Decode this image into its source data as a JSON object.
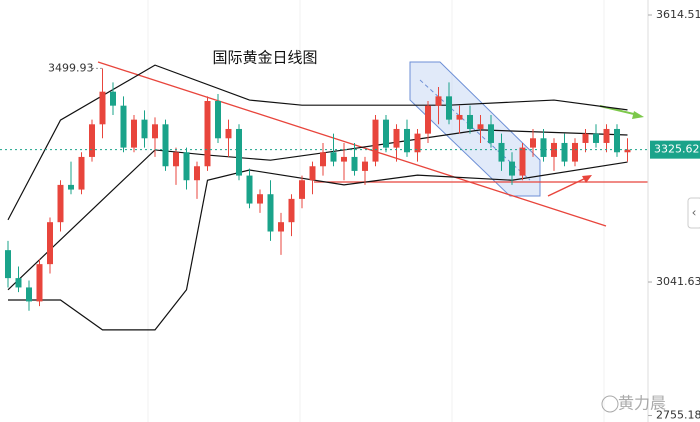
{
  "chart_data": {
    "type": "candlestick",
    "title": "国际黄金日线图",
    "watermark": "黄力晨",
    "ylim": [
      2741.3,
      3646.7
    ],
    "yticks": [
      3614.51,
      3041.63,
      2755.18
    ],
    "last_price": 3325.62,
    "high_annotation": 3499.93,
    "up_color": "#e8453c",
    "down_color": "#1aa38a",
    "candles": [
      [
        3110,
        3130,
        3030,
        3050
      ],
      [
        3050,
        3075,
        3020,
        3030
      ],
      [
        3030,
        3045,
        2980,
        3000
      ],
      [
        3000,
        3090,
        2990,
        3080
      ],
      [
        3080,
        3180,
        3060,
        3170
      ],
      [
        3170,
        3260,
        3150,
        3250
      ],
      [
        3250,
        3300,
        3230,
        3240
      ],
      [
        3240,
        3320,
        3230,
        3310
      ],
      [
        3310,
        3390,
        3300,
        3380
      ],
      [
        3380,
        3499.93,
        3350,
        3450
      ],
      [
        3450,
        3470,
        3400,
        3420
      ],
      [
        3420,
        3440,
        3320,
        3330
      ],
      [
        3330,
        3400,
        3320,
        3390
      ],
      [
        3390,
        3410,
        3330,
        3350
      ],
      [
        3350,
        3395,
        3310,
        3380
      ],
      [
        3380,
        3390,
        3280,
        3290
      ],
      [
        3290,
        3330,
        3250,
        3320
      ],
      [
        3320,
        3330,
        3240,
        3260
      ],
      [
        3260,
        3300,
        3220,
        3290
      ],
      [
        3290,
        3440,
        3280,
        3430
      ],
      [
        3430,
        3445,
        3340,
        3350
      ],
      [
        3350,
        3390,
        3310,
        3370
      ],
      [
        3370,
        3380,
        3260,
        3270
      ],
      [
        3270,
        3285,
        3200,
        3210
      ],
      [
        3210,
        3240,
        3190,
        3230
      ],
      [
        3230,
        3260,
        3130,
        3150
      ],
      [
        3150,
        3190,
        3100,
        3170
      ],
      [
        3170,
        3230,
        3140,
        3220
      ],
      [
        3220,
        3270,
        3200,
        3260
      ],
      [
        3260,
        3300,
        3230,
        3290
      ],
      [
        3290,
        3340,
        3270,
        3320
      ],
      [
        3320,
        3360,
        3290,
        3300
      ],
      [
        3300,
        3340,
        3260,
        3310
      ],
      [
        3310,
        3340,
        3270,
        3280
      ],
      [
        3280,
        3310,
        3250,
        3300
      ],
      [
        3300,
        3400,
        3290,
        3390
      ],
      [
        3390,
        3400,
        3320,
        3330
      ],
      [
        3330,
        3380,
        3300,
        3370
      ],
      [
        3370,
        3390,
        3310,
        3320
      ],
      [
        3320,
        3370,
        3300,
        3360
      ],
      [
        3360,
        3430,
        3340,
        3420
      ],
      [
        3420,
        3460,
        3380,
        3440
      ],
      [
        3440,
        3470,
        3380,
        3390
      ],
      [
        3390,
        3420,
        3360,
        3400
      ],
      [
        3400,
        3420,
        3360,
        3370
      ],
      [
        3370,
        3400,
        3340,
        3380
      ],
      [
        3380,
        3400,
        3330,
        3340
      ],
      [
        3340,
        3360,
        3280,
        3300
      ],
      [
        3300,
        3320,
        3250,
        3270
      ],
      [
        3270,
        3340,
        3260,
        3330
      ],
      [
        3330,
        3370,
        3310,
        3350
      ],
      [
        3350,
        3370,
        3300,
        3310
      ],
      [
        3310,
        3350,
        3280,
        3340
      ],
      [
        3340,
        3360,
        3290,
        3300
      ],
      [
        3300,
        3350,
        3290,
        3340
      ],
      [
        3340,
        3370,
        3320,
        3360
      ],
      [
        3360,
        3380,
        3330,
        3340
      ],
      [
        3340,
        3380,
        3320,
        3370
      ],
      [
        3370,
        3380,
        3310,
        3320
      ],
      [
        3320,
        3350,
        3300,
        3325.62
      ]
    ],
    "overlays": [
      {
        "color": "#111111",
        "x": [
          0,
          5,
          14,
          23,
          28,
          42,
          52,
          59
        ],
        "values": [
          3175,
          3389,
          3507,
          3432,
          3421,
          3421,
          3432,
          3411
        ]
      },
      {
        "color": "#111111",
        "x": [
          0,
          5,
          9,
          14,
          17,
          19,
          23,
          32,
          39,
          48,
          59
        ],
        "values": [
          3003,
          3003,
          2939,
          2939,
          3025,
          3260,
          3282,
          3250,
          3271,
          3260,
          3299
        ]
      },
      {
        "color": "#111111",
        "x": [
          0,
          9,
          14,
          19,
          25,
          32,
          45,
          59
        ],
        "values": [
          3025,
          3218,
          3325,
          3314,
          3303,
          3325,
          3368,
          3357
        ]
      }
    ]
  }
}
